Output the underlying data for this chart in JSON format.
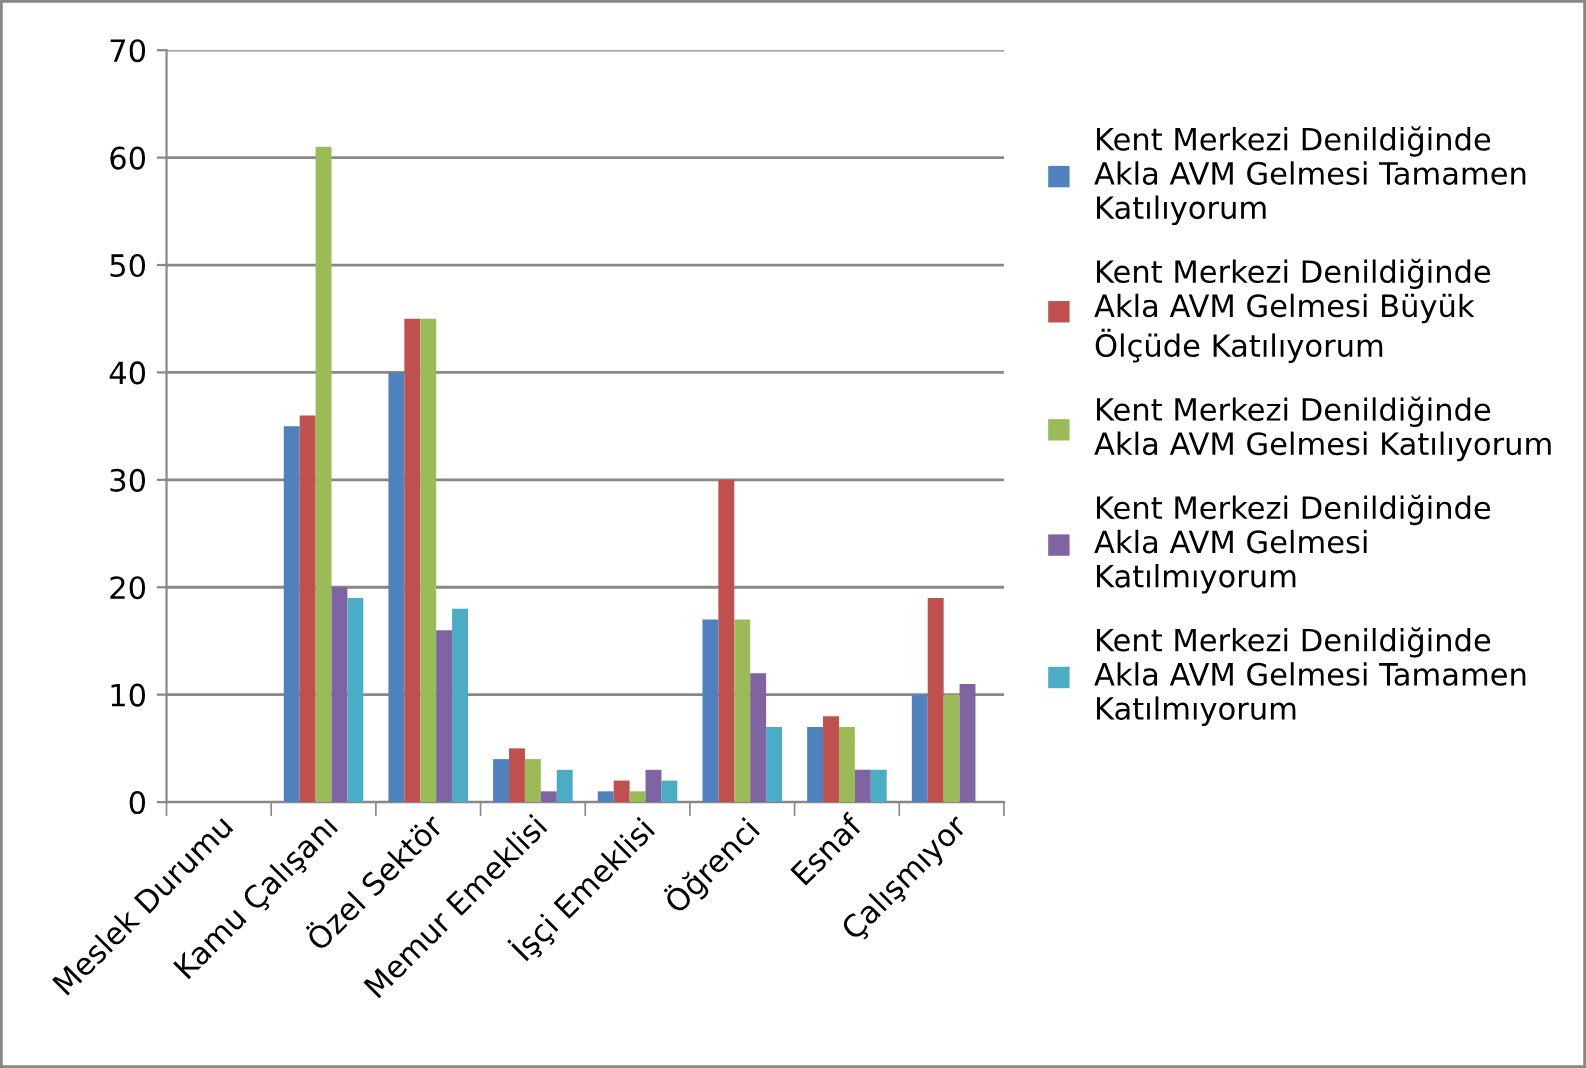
{
  "chart_data": {
    "type": "bar",
    "categories": [
      "Meslek Durumu",
      "Kamu Çalışanı",
      "Özel Sektör",
      "Memur Emeklisi",
      "İşçi Emeklisi",
      "Öğrenci",
      "Esnaf",
      "Çalışmıyor"
    ],
    "series": [
      {
        "name": "Kent Merkezi Denildiğinde\nAkla AVM Gelmesi Tamamen\nKatılıyorum",
        "color": "#4f81bd",
        "values": [
          null,
          35,
          40,
          4,
          1,
          17,
          7,
          10
        ]
      },
      {
        "name": "Kent Merkezi Denildiğinde\nAkla AVM Gelmesi Büyük\nÖlçüde Katılıyorum",
        "color": "#c0504d",
        "values": [
          null,
          36,
          45,
          5,
          2,
          30,
          8,
          19
        ]
      },
      {
        "name": "Kent Merkezi Denildiğinde\nAkla AVM Gelmesi Katılıyorum",
        "color": "#9bbb59",
        "values": [
          null,
          61,
          45,
          4,
          1,
          17,
          7,
          10
        ]
      },
      {
        "name": "Kent Merkezi Denildiğinde\nAkla AVM Gelmesi\nKatılmıyorum",
        "color": "#8064a2",
        "values": [
          null,
          20,
          16,
          1,
          3,
          12,
          3,
          11
        ]
      },
      {
        "name": "Kent Merkezi Denildiğinde\nAkla AVM Gelmesi Tamamen\nKatılmıyorum",
        "color": "#4bacc6",
        "values": [
          null,
          19,
          18,
          3,
          2,
          7,
          3,
          null
        ]
      }
    ],
    "ylim": [
      0,
      70
    ],
    "yticks": [
      0,
      10,
      20,
      30,
      40,
      50,
      60,
      70
    ],
    "grid": "y",
    "legend": "right"
  }
}
